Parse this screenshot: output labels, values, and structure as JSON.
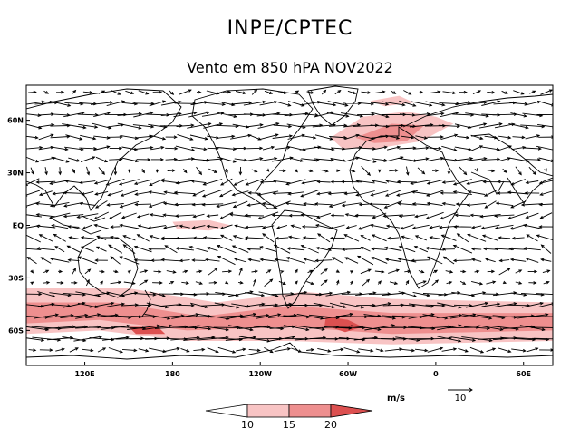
{
  "header": "INPE/CPTEC",
  "title": "Vento em 850 hPA NOV2022",
  "map": {
    "lon_min": 80,
    "lon_max": 440,
    "lat_min": -80,
    "lat_max": 80,
    "lat_ticks": [
      {
        "label": "60N",
        "lat": 60
      },
      {
        "label": "30N",
        "lat": 30
      },
      {
        "label": "EQ",
        "lat": 0
      },
      {
        "label": "30S",
        "lat": -30
      },
      {
        "label": "60S",
        "lat": -60
      }
    ],
    "lon_ticks": [
      {
        "label": "120E",
        "lon": 120
      },
      {
        "label": "180",
        "lon": 180
      },
      {
        "label": "120W",
        "lon": 240
      },
      {
        "label": "60W",
        "lon": 300
      },
      {
        "label": "0",
        "lon": 360
      },
      {
        "label": "60E",
        "lon": 420
      }
    ]
  },
  "units": "m/s",
  "reference_vector": {
    "label": "10",
    "speed": 10
  },
  "colorbar": {
    "levels": [
      "10",
      "15",
      "20"
    ],
    "colors": [
      "#ffffff",
      "#f8c4c4",
      "#ee8f8f",
      "#dc5050"
    ]
  },
  "wind_regimes": [
    {
      "lat_from": 80,
      "lat_to": 70,
      "u": 4,
      "v": 0
    },
    {
      "lat_from": 70,
      "lat_to": 55,
      "u": 10,
      "v": 0
    },
    {
      "lat_from": 55,
      "lat_to": 35,
      "u": 8,
      "v": 0
    },
    {
      "lat_from": 35,
      "lat_to": 25,
      "u": 2,
      "v": -2
    },
    {
      "lat_from": 25,
      "lat_to": 5,
      "u": -8,
      "v": -1
    },
    {
      "lat_from": 5,
      "lat_to": -5,
      "u": -7,
      "v": 0
    },
    {
      "lat_from": -5,
      "lat_to": -20,
      "u": -7,
      "v": 2
    },
    {
      "lat_from": -20,
      "lat_to": -35,
      "u": 3,
      "v": 1
    },
    {
      "lat_from": -35,
      "lat_to": -50,
      "u": 10,
      "v": 0
    },
    {
      "lat_from": -50,
      "lat_to": -65,
      "u": 14,
      "v": 0
    },
    {
      "lat_from": -65,
      "lat_to": -80,
      "u": 6,
      "v": 0
    }
  ],
  "shading_regions": [
    {
      "level": 1,
      "points": [
        [
          80,
          -36
        ],
        [
          150,
          -36
        ],
        [
          210,
          -44
        ],
        [
          270,
          -38
        ],
        [
          330,
          -42
        ],
        [
          440,
          -44
        ],
        [
          440,
          -66
        ],
        [
          330,
          -68
        ],
        [
          260,
          -66
        ],
        [
          190,
          -66
        ],
        [
          130,
          -60
        ],
        [
          80,
          -62
        ]
      ]
    },
    {
      "level": 2,
      "points": [
        [
          80,
          -44
        ],
        [
          140,
          -44
        ],
        [
          200,
          -52
        ],
        [
          260,
          -46
        ],
        [
          330,
          -50
        ],
        [
          440,
          -50
        ],
        [
          440,
          -60
        ],
        [
          330,
          -62
        ],
        [
          260,
          -58
        ],
        [
          190,
          -60
        ],
        [
          130,
          -54
        ],
        [
          80,
          -56
        ]
      ]
    },
    {
      "level": 3,
      "points": [
        [
          285,
          -52
        ],
        [
          300,
          -54
        ],
        [
          310,
          -58
        ],
        [
          298,
          -61
        ],
        [
          284,
          -57
        ]
      ]
    },
    {
      "level": 3,
      "points": [
        [
          150,
          -58
        ],
        [
          170,
          -58
        ],
        [
          175,
          -62
        ],
        [
          155,
          -62
        ]
      ]
    },
    {
      "level": 1,
      "points": [
        [
          288,
          50
        ],
        [
          310,
          62
        ],
        [
          340,
          65
        ],
        [
          360,
          62
        ],
        [
          372,
          58
        ],
        [
          350,
          48
        ],
        [
          320,
          44
        ],
        [
          296,
          44
        ]
      ]
    },
    {
      "level": 2,
      "points": [
        [
          305,
          50
        ],
        [
          330,
          58
        ],
        [
          352,
          57
        ],
        [
          340,
          48
        ],
        [
          318,
          47
        ]
      ]
    },
    {
      "level": 1,
      "points": [
        [
          315,
          71
        ],
        [
          335,
          74
        ],
        [
          345,
          70
        ],
        [
          325,
          68
        ]
      ]
    },
    {
      "level": 1,
      "points": [
        [
          180,
          2
        ],
        [
          205,
          3
        ],
        [
          220,
          0
        ],
        [
          205,
          -3
        ],
        [
          183,
          -2
        ]
      ]
    }
  ]
}
